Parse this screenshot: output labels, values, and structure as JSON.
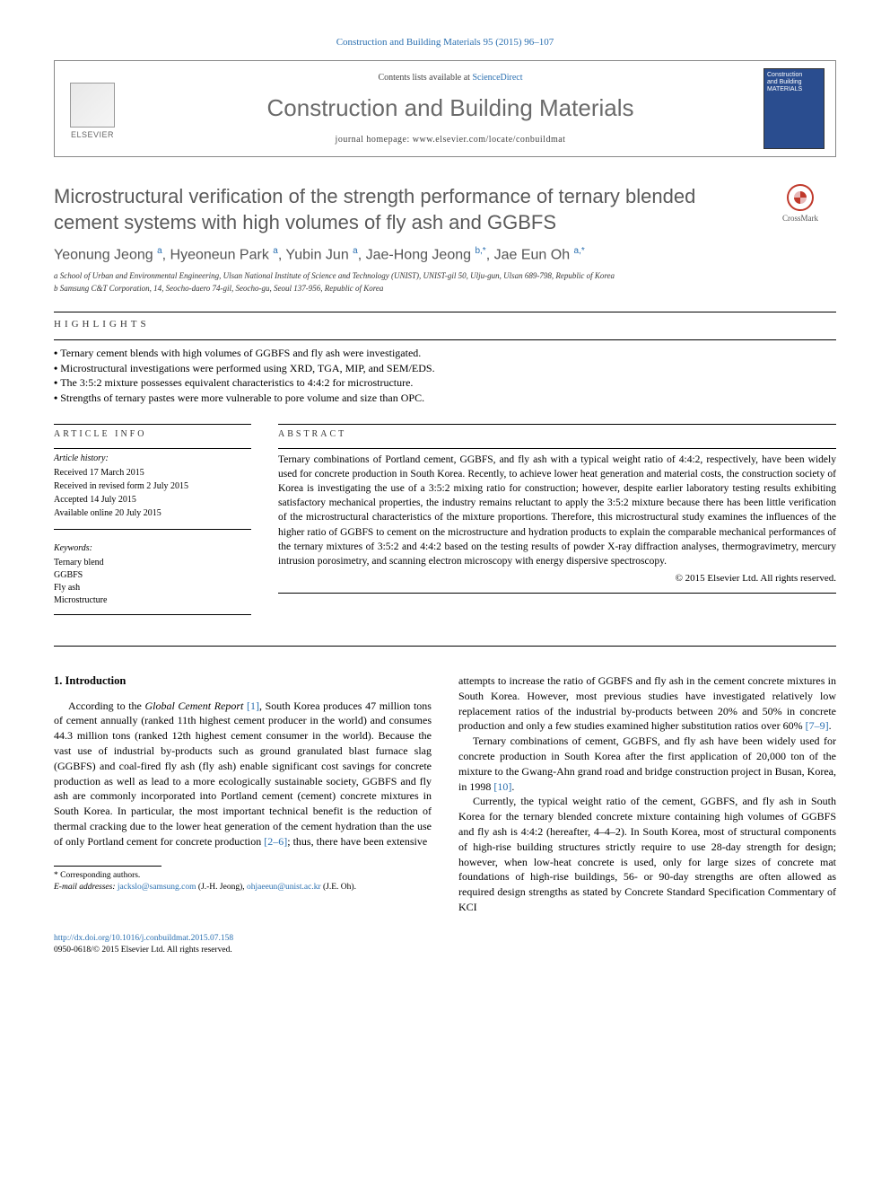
{
  "header": {
    "citation": "Construction and Building Materials 95 (2015) 96–107",
    "contents_prefix": "Contents lists available at ",
    "contents_link": "ScienceDirect",
    "journal_name": "Construction and Building Materials",
    "homepage_prefix": "journal homepage: ",
    "homepage_url": "www.elsevier.com/locate/conbuildmat",
    "publisher_logo_text": "ELSEVIER",
    "cover_line1": "Construction",
    "cover_line2": "and Building",
    "cover_line3": "MATERIALS"
  },
  "crossmark_label": "CrossMark",
  "article": {
    "title": "Microstructural verification of the strength performance of ternary blended cement systems with high volumes of fly ash and GGBFS",
    "authors_html": "Yeonung Jeong <sup>a</sup>, Hyeoneun Park <sup>a</sup>, Yubin Jun <sup>a</sup>, Jae-Hong Jeong <sup>b,*</sup>, Jae Eun Oh <sup>a,*</sup>",
    "affiliations": [
      "a School of Urban and Environmental Engineering, Ulsan National Institute of Science and Technology (UNIST), UNIST-gil 50, Ulju-gun, Ulsan 689-798, Republic of Korea",
      "b Samsung C&T Corporation, 14, Seocho-daero 74-gil, Seocho-gu, Seoul 137-956, Republic of Korea"
    ]
  },
  "highlights": {
    "label": "HIGHLIGHTS",
    "items": [
      "Ternary cement blends with high volumes of GGBFS and fly ash were investigated.",
      "Microstructural investigations were performed using XRD, TGA, MIP, and SEM/EDS.",
      "The 3:5:2 mixture possesses equivalent characteristics to 4:4:2 for microstructure.",
      "Strengths of ternary pastes were more vulnerable to pore volume and size than OPC."
    ]
  },
  "article_info": {
    "label": "ARTICLE INFO",
    "history_label": "Article history:",
    "history": [
      "Received 17 March 2015",
      "Received in revised form 2 July 2015",
      "Accepted 14 July 2015",
      "Available online 20 July 2015"
    ],
    "keywords_label": "Keywords:",
    "keywords": [
      "Ternary blend",
      "GGBFS",
      "Fly ash",
      "Microstructure"
    ]
  },
  "abstract": {
    "label": "ABSTRACT",
    "text": "Ternary combinations of Portland cement, GGBFS, and fly ash with a typical weight ratio of 4:4:2, respectively, have been widely used for concrete production in South Korea. Recently, to achieve lower heat generation and material costs, the construction society of Korea is investigating the use of a 3:5:2 mixing ratio for construction; however, despite earlier laboratory testing results exhibiting satisfactory mechanical properties, the industry remains reluctant to apply the 3:5:2 mixture because there has been little verification of the microstructural characteristics of the mixture proportions. Therefore, this microstructural study examines the influences of the higher ratio of GGBFS to cement on the microstructure and hydration products to explain the comparable mechanical performances of the ternary mixtures of 3:5:2 and 4:4:2 based on the testing results of powder X-ray diffraction analyses, thermogravimetry, mercury intrusion porosimetry, and scanning electron microscopy with energy dispersive spectroscopy.",
    "copyright": "© 2015 Elsevier Ltd. All rights reserved."
  },
  "body": {
    "section_heading": "1. Introduction",
    "para1_pre": "According to the ",
    "para1_ital": "Global Cement Report",
    "para1_ref1": " [1]",
    "para1_post": ", South Korea produces 47 million tons of cement annually (ranked 11th highest cement producer in the world) and consumes 44.3 million tons (ranked 12th highest cement consumer in the world). Because the vast use of industrial by-products such as ground granulated blast furnace slag (GGBFS) and coal-fired fly ash (fly ash) enable significant cost savings for concrete production as well as lead to a more ecologically sustainable society, GGBFS and fly ash are commonly incorporated into Portland cement (cement) concrete mixtures in South Korea. In particular, the most important technical benefit is the reduction of thermal cracking due to the lower heat generation of the cement hydration than the use of only Portland cement for concrete production ",
    "para1_ref2": "[2–6]",
    "para1_tail": "; thus, there have been extensive",
    "para2_pre": "attempts to increase the ratio of GGBFS and fly ash in the cement concrete mixtures in South Korea. However, most previous studies have investigated relatively low replacement ratios of the industrial by-products between 20% and 50% in concrete production and only a few studies examined higher substitution ratios over 60% ",
    "para2_ref": "[7–9]",
    "para2_tail": ".",
    "para3_pre": "Ternary combinations of cement, GGBFS, and fly ash have been widely used for concrete production in South Korea after the first application of 20,000 ton of the mixture to the Gwang-Ahn grand road and bridge construction project in Busan, Korea, in 1998 ",
    "para3_ref": "[10]",
    "para3_tail": ".",
    "para4": "Currently, the typical weight ratio of the cement, GGBFS, and fly ash in South Korea for the ternary blended concrete mixture containing high volumes of GGBFS and fly ash is 4:4:2 (hereafter, 4–4–2). In South Korea, most of structural components of high-rise building structures strictly require to use 28-day strength for design; however, when low-heat concrete is used, only for large sizes of concrete mat foundations of high-rise buildings, 56- or 90-day strengths are often allowed as required design strengths as stated by Concrete Standard Specification Commentary of KCI"
  },
  "footnotes": {
    "corr_label": "* Corresponding authors.",
    "email_label": "E-mail addresses:",
    "email1": "jackslo@samsung.com",
    "email1_who": " (J.-H. Jeong), ",
    "email2": "ohjaeeun@unist.ac.kr",
    "email2_who": " (J.E. Oh)."
  },
  "footer": {
    "doi": "http://dx.doi.org/10.1016/j.conbuildmat.2015.07.158",
    "issn_line": "0950-0618/© 2015 Elsevier Ltd. All rights reserved."
  },
  "colors": {
    "link": "#2a6fb0",
    "title_gray": "#5a5a5a",
    "cover_bg": "#2a4d8f"
  }
}
